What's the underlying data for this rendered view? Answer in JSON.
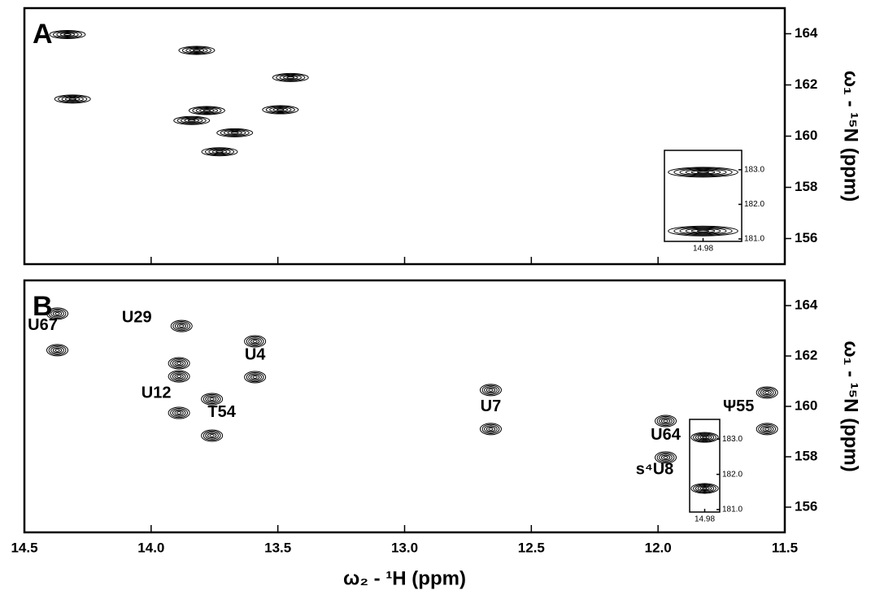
{
  "chart_data": [
    {
      "type": "contour",
      "panel": "A",
      "color": "#000000",
      "xlim": [
        11.5,
        14.5
      ],
      "x_inverted": true,
      "xticks": [
        14.5,
        {
          "value": 14.0,
          "label": "14.0"
        },
        13.5,
        {
          "value": 13.0,
          "label": "13.0"
        },
        12.5,
        {
          "value": 12.0,
          "label": "12.0"
        },
        11.5
      ],
      "ylim": [
        155,
        165
      ],
      "y_inverted": true,
      "yticks": [
        156,
        158,
        160,
        162,
        164
      ],
      "y_label": "ω₁ - ¹⁵N (ppm)",
      "x": [
        14.31,
        14.33,
        13.73,
        13.67,
        13.78,
        13.49,
        13.45,
        13.82,
        13.84
      ],
      "values": [
        161.45,
        163.97,
        159.39,
        160.13,
        161.0,
        161.03,
        162.29,
        163.35,
        160.61
      ],
      "inset": {
        "xlim": [
          14.93,
          15.03
        ],
        "x_inverted": true,
        "xticks": [
          {
            "value": 14.98,
            "label": "14.98"
          }
        ],
        "ylim": [
          180.93,
          183.56
        ],
        "y_inverted": true,
        "yticks": [
          {
            "value": 181.0,
            "label": "181.0"
          },
          {
            "value": 182.0,
            "label": "182.0"
          },
          {
            "value": 183.0,
            "label": "183.0"
          }
        ],
        "x": [
          14.98,
          14.98
        ],
        "values": [
          181.23,
          182.93
        ]
      }
    },
    {
      "type": "contour",
      "panel": "B",
      "color": "#000000",
      "xlim": [
        11.5,
        14.5
      ],
      "x_inverted": true,
      "xticks": [
        14.5,
        {
          "value": 14.0,
          "label": "14.0"
        },
        13.5,
        {
          "value": 13.0,
          "label": "13.0"
        },
        12.5,
        {
          "value": 12.0,
          "label": "12.0"
        },
        11.5
      ],
      "ylim": [
        155,
        165
      ],
      "y_inverted": true,
      "yticks": [
        156,
        158,
        160,
        162,
        164
      ],
      "y_label": "ω₁ - ¹⁵N (ppm)",
      "x_label": "ω₂ - ¹H (ppm)",
      "x": [
        14.37,
        14.37,
        13.89,
        13.76,
        13.76,
        13.89,
        13.89,
        13.88,
        13.59,
        13.59,
        12.66,
        12.66,
        11.97,
        11.97,
        11.57,
        11.57
      ],
      "values": [
        162.23,
        163.68,
        159.74,
        158.84,
        160.29,
        161.19,
        161.71,
        163.19,
        161.16,
        162.58,
        159.1,
        160.65,
        157.97,
        159.42,
        159.1,
        160.55
      ],
      "point_labels": [
        "U67",
        null,
        "U12",
        "T54",
        null,
        null,
        null,
        "U29",
        "U4",
        null,
        "U7",
        null,
        "U64",
        null,
        "Ψ55",
        null
      ],
      "inset": {
        "xlim": [
          14.93,
          15.03
        ],
        "x_inverted": true,
        "xticks": [
          {
            "value": 14.98,
            "label": "14.98"
          }
        ],
        "ylim": [
          180.93,
          183.56
        ],
        "y_inverted": true,
        "yticks": [
          {
            "value": 181.0,
            "label": "181.0"
          },
          {
            "value": 182.0,
            "label": "182.0"
          },
          {
            "value": 183.0,
            "label": "183.0"
          }
        ],
        "x": [
          14.98,
          14.98
        ],
        "values": [
          181.6,
          183.05
        ],
        "label": "s⁴U8"
      }
    }
  ]
}
